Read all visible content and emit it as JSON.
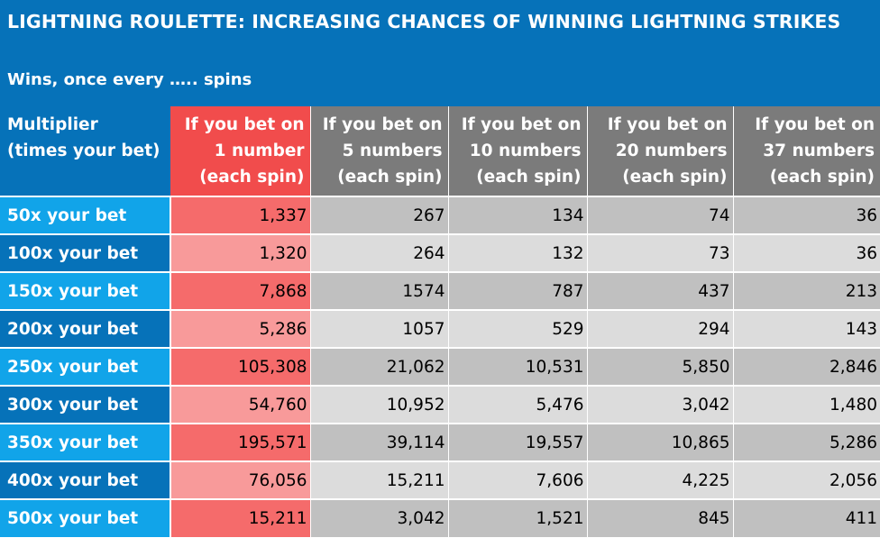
{
  "title": "LIGHTNING ROULETTE: INCREASING CHANCES OF WINNING LIGHTNING STRIKES",
  "subtitle": "Wins, once every ….. spins",
  "multiplier_header": [
    "Multiplier",
    "(times your bet)"
  ],
  "columns": [
    {
      "line1": "If you bet on",
      "line2": "1 number",
      "line3": "(each spin)"
    },
    {
      "line1": "If you bet on",
      "line2": "5 numbers",
      "line3": "(each spin)"
    },
    {
      "line1": "If you bet on",
      "line2": "10 numbers",
      "line3": "(each spin)"
    },
    {
      "line1": "If you bet on",
      "line2": "20 numbers",
      "line3": "(each spin)"
    },
    {
      "line1": "If you bet on",
      "line2": "37 numbers",
      "line3": "(each spin)"
    }
  ],
  "rows": [
    {
      "label": "50x  your bet",
      "values": [
        "1,337",
        "267",
        "134",
        "74",
        "36"
      ]
    },
    {
      "label": "100x your bet",
      "values": [
        "1,320",
        "264",
        "132",
        "73",
        "36"
      ]
    },
    {
      "label": "150x your bet",
      "values": [
        "7,868",
        "1574",
        "787",
        "437",
        "213"
      ]
    },
    {
      "label": "200x your bet",
      "values": [
        "5,286",
        "1057",
        "529",
        "294",
        "143"
      ]
    },
    {
      "label": "250x your bet",
      "values": [
        "105,308",
        "21,062",
        "10,531",
        "5,850",
        "2,846"
      ]
    },
    {
      "label": "300x your bet",
      "values": [
        "54,760",
        "10,952",
        "5,476",
        "3,042",
        "1,480"
      ]
    },
    {
      "label": "350x your bet",
      "values": [
        "195,571",
        "39,114",
        "19,557",
        "10,865",
        "5,286"
      ]
    },
    {
      "label": "400x your bet",
      "values": [
        "76,056",
        "15,211",
        "7,606",
        "4,225",
        "2,056"
      ]
    },
    {
      "label": "500x your bet",
      "values": [
        "15,211",
        "3,042",
        "1,521",
        "845",
        "411"
      ]
    }
  ],
  "colors": {
    "title_band": "#0672b9",
    "label_light": "#11a4e9",
    "label_dark": "#0672b9",
    "highlight_header": "#f14c4c",
    "highlight_cell_dark": "#f56b6b",
    "highlight_cell_light": "#f89a9a",
    "gray_header": "#7b7b7b",
    "gray_cell_dark": "#c0c0c0",
    "gray_cell_light": "#dcdcdc"
  }
}
